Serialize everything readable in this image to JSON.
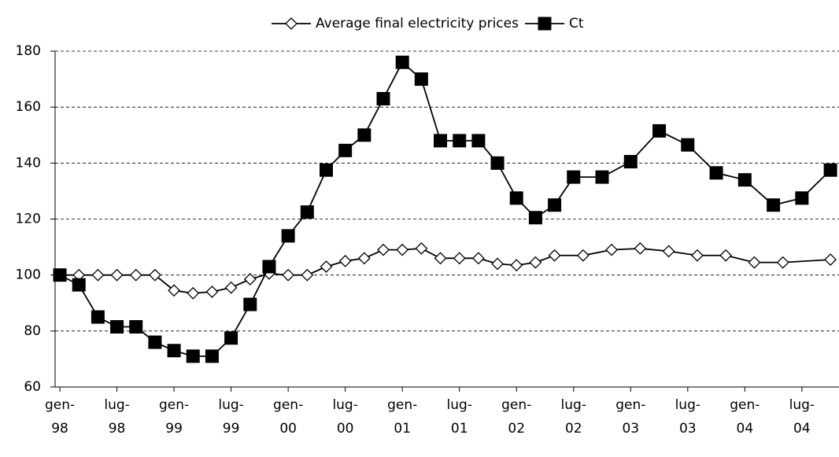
{
  "chart_data": {
    "type": "line",
    "series": [
      {
        "name": "Average final electricity prices",
        "color": "#000000",
        "marker": "diamond",
        "x": [
          0,
          2,
          4,
          6,
          8,
          10,
          12,
          14,
          16,
          18,
          20,
          22,
          24,
          26,
          28,
          30,
          32,
          34,
          36,
          38,
          40,
          42,
          44,
          46,
          48,
          50,
          52,
          55,
          58,
          61,
          64,
          67,
          70,
          73,
          76,
          81
        ],
        "values": [
          100,
          100,
          100,
          100,
          100,
          100,
          94.5,
          93.5,
          94,
          95.5,
          98.5,
          100.5,
          100,
          100,
          103,
          105,
          106,
          109,
          109,
          109.5,
          106,
          106,
          106,
          104,
          103.5,
          104.5,
          107,
          107,
          109,
          109.5,
          108.5,
          107,
          107,
          104.5,
          104.5,
          105.5
        ]
      },
      {
        "name": "Ct",
        "color": "#000000",
        "marker": "square",
        "x": [
          0,
          2,
          4,
          6,
          8,
          10,
          12,
          14,
          16,
          18,
          20,
          22,
          24,
          26,
          28,
          30,
          32,
          34,
          36,
          38,
          40,
          42,
          44,
          46,
          48,
          50,
          52,
          54,
          57,
          60,
          63,
          66,
          69,
          72,
          75,
          78,
          81
        ],
        "values": [
          100,
          96.5,
          85,
          81.5,
          81.5,
          76,
          73,
          71,
          71,
          77.5,
          89.5,
          103,
          114,
          122.5,
          137.5,
          144.5,
          150,
          163,
          176,
          170,
          148,
          148,
          148,
          140,
          127.5,
          120.5,
          125,
          135,
          135,
          140.5,
          151.5,
          146.5,
          136.5,
          134,
          125,
          127.5,
          137.5
        ]
      }
    ],
    "xlim": [
      -0.5,
      81.9
    ],
    "xticks": [
      {
        "value": 0,
        "label": "gen-98"
      },
      {
        "value": 6,
        "label": "lug-98"
      },
      {
        "value": 12,
        "label": "gen-99"
      },
      {
        "value": 18,
        "label": "lug-99"
      },
      {
        "value": 24,
        "label": "gen-00"
      },
      {
        "value": 30,
        "label": "lug-00"
      },
      {
        "value": 36,
        "label": "gen-01"
      },
      {
        "value": 42,
        "label": "lug-01"
      },
      {
        "value": 48,
        "label": "gen-02"
      },
      {
        "value": 54,
        "label": "lug-02"
      },
      {
        "value": 60,
        "label": "gen-03"
      },
      {
        "value": 66,
        "label": "lug-03"
      },
      {
        "value": 72,
        "label": "gen-04"
      },
      {
        "value": 78,
        "label": "lug-04"
      }
    ],
    "ylim": [
      60,
      180
    ],
    "yticks": [
      60,
      80,
      100,
      120,
      140,
      160,
      180
    ],
    "grid": true,
    "legend": "top"
  }
}
